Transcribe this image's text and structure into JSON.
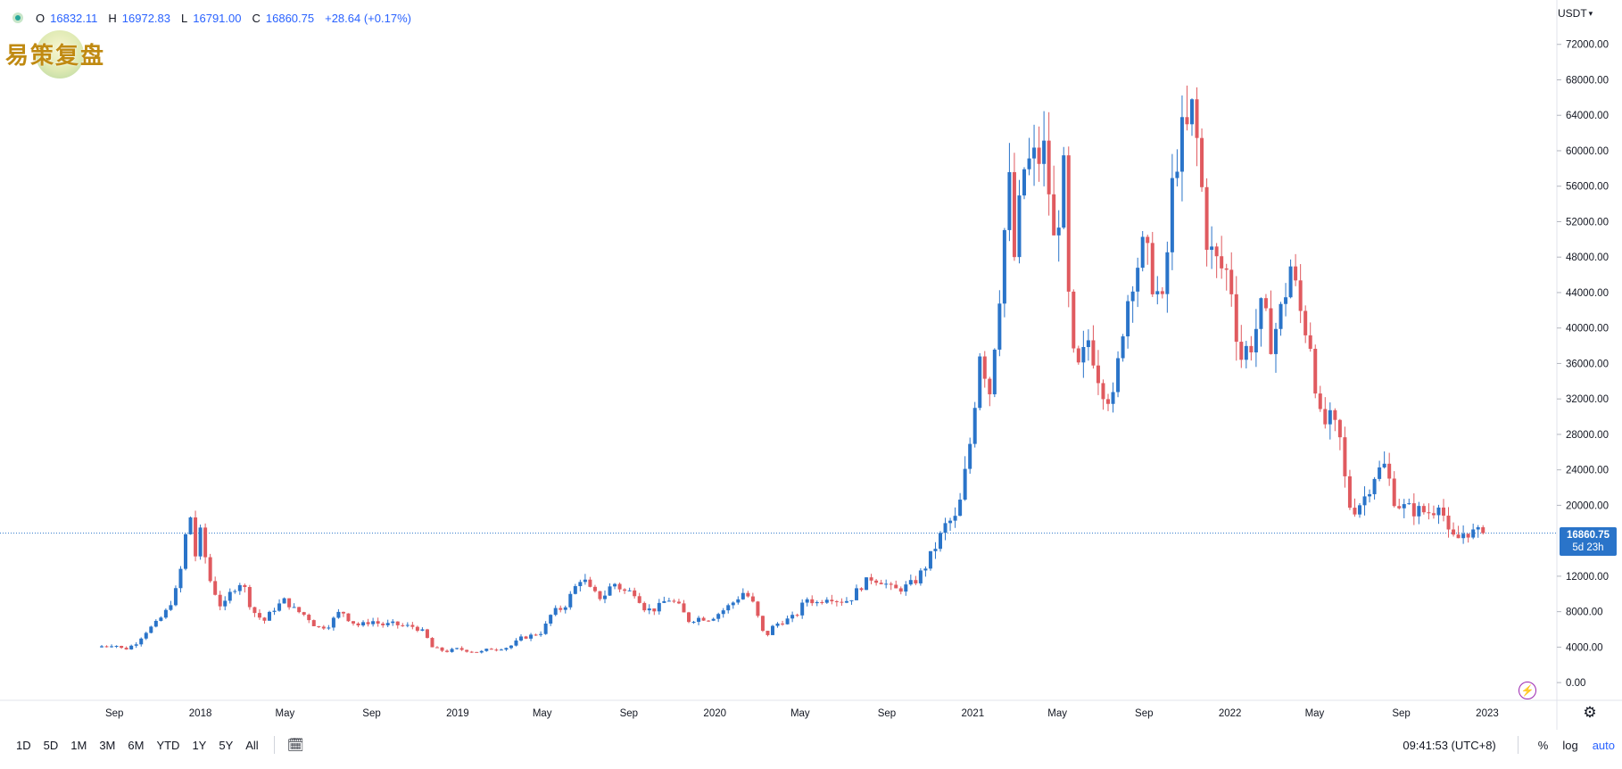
{
  "legend": {
    "open_label": "O",
    "open": "16832.11",
    "high_label": "H",
    "high": "16972.83",
    "low_label": "L",
    "low": "16791.00",
    "close_label": "C",
    "close": "16860.75",
    "change": "+28.64 (+0.17%)"
  },
  "watermark": {
    "text": "易策复盘"
  },
  "currency": {
    "label": "USDT",
    "icon": "chevron-down-icon"
  },
  "price_tag": {
    "price": "16860.75",
    "countdown": "5d 23h"
  },
  "toolbar": {
    "ranges": [
      "1D",
      "5D",
      "1M",
      "3M",
      "6M",
      "YTD",
      "1Y",
      "5Y",
      "All"
    ],
    "date_range_icon": "calendar-range-icon",
    "clock": "09:41:53 (UTC+8)",
    "percent_label": "%",
    "log_label": "log",
    "auto_label": "auto"
  },
  "icons": {
    "flash": "flash-icon",
    "settings": "gear-icon",
    "status": "status-dot"
  },
  "colors": {
    "up": "#2a74c9",
    "down": "#e05a5f",
    "price_line": "#2a74c9",
    "legend_text": "#2962ff",
    "axis_text": "#131722",
    "gridline": "none"
  },
  "chart_data": {
    "type": "candlestick",
    "symbol_currency": "USDT",
    "interval": "weekly",
    "grid": false,
    "ylim": [
      -2000,
      76000
    ],
    "y_ticks": [
      "72000.00",
      "68000.00",
      "64000.00",
      "60000.00",
      "56000.00",
      "52000.00",
      "48000.00",
      "44000.00",
      "40000.00",
      "36000.00",
      "32000.00",
      "28000.00",
      "24000.00",
      "20000.00",
      "12000.00",
      "8000.00",
      "4000.00",
      "0.00"
    ],
    "x_start": "2017-08-14",
    "x_end": "2023-02-27",
    "x_ticks": [
      {
        "label": "Sep",
        "date": "2017-09-01"
      },
      {
        "label": "2018",
        "date": "2018-01-01"
      },
      {
        "label": "May",
        "date": "2018-05-01"
      },
      {
        "label": "Sep",
        "date": "2018-09-01"
      },
      {
        "label": "2019",
        "date": "2019-01-01"
      },
      {
        "label": "May",
        "date": "2019-05-01"
      },
      {
        "label": "Sep",
        "date": "2019-09-01"
      },
      {
        "label": "2020",
        "date": "2020-01-01"
      },
      {
        "label": "May",
        "date": "2020-05-01"
      },
      {
        "label": "Sep",
        "date": "2020-09-01"
      },
      {
        "label": "2021",
        "date": "2021-01-01"
      },
      {
        "label": "May",
        "date": "2021-05-01"
      },
      {
        "label": "Sep",
        "date": "2021-09-01"
      },
      {
        "label": "2022",
        "date": "2022-01-01"
      },
      {
        "label": "May",
        "date": "2022-05-01"
      },
      {
        "label": "Sep",
        "date": "2022-09-01"
      },
      {
        "label": "2023",
        "date": "2023-01-01"
      }
    ],
    "last_price": 16860.75,
    "closes": [
      {
        "date": "2017-08-14",
        "close": 4100
      },
      {
        "date": "2017-09-01",
        "close": 4300
      },
      {
        "date": "2017-09-15",
        "close": 3700
      },
      {
        "date": "2017-10-01",
        "close": 4400
      },
      {
        "date": "2017-10-15",
        "close": 5700
      },
      {
        "date": "2017-11-01",
        "close": 6800
      },
      {
        "date": "2017-11-15",
        "close": 8200
      },
      {
        "date": "2017-12-01",
        "close": 11000
      },
      {
        "date": "2017-12-08",
        "close": 15000
      },
      {
        "date": "2017-12-17",
        "close": 19500
      },
      {
        "date": "2017-12-24",
        "close": 14000
      },
      {
        "date": "2018-01-01",
        "close": 16800
      },
      {
        "date": "2018-01-15",
        "close": 11500
      },
      {
        "date": "2018-02-01",
        "close": 8200
      },
      {
        "date": "2018-02-15",
        "close": 10500
      },
      {
        "date": "2018-03-01",
        "close": 11500
      },
      {
        "date": "2018-03-15",
        "close": 8200
      },
      {
        "date": "2018-04-01",
        "close": 6900
      },
      {
        "date": "2018-04-15",
        "close": 8300
      },
      {
        "date": "2018-05-01",
        "close": 9300
      },
      {
        "date": "2018-05-15",
        "close": 8200
      },
      {
        "date": "2018-06-01",
        "close": 7500
      },
      {
        "date": "2018-06-15",
        "close": 6200
      },
      {
        "date": "2018-07-01",
        "close": 6400
      },
      {
        "date": "2018-07-20",
        "close": 8200
      },
      {
        "date": "2018-08-01",
        "close": 7000
      },
      {
        "date": "2018-08-15",
        "close": 6400
      },
      {
        "date": "2018-09-01",
        "close": 7000
      },
      {
        "date": "2018-09-15",
        "close": 6500
      },
      {
        "date": "2018-10-01",
        "close": 6600
      },
      {
        "date": "2018-10-15",
        "close": 6400
      },
      {
        "date": "2018-11-01",
        "close": 6300
      },
      {
        "date": "2018-11-15",
        "close": 5600
      },
      {
        "date": "2018-11-25",
        "close": 4000
      },
      {
        "date": "2018-12-15",
        "close": 3500
      },
      {
        "date": "2019-01-01",
        "close": 3800
      },
      {
        "date": "2019-01-15",
        "close": 3600
      },
      {
        "date": "2019-02-01",
        "close": 3400
      },
      {
        "date": "2019-02-15",
        "close": 3800
      },
      {
        "date": "2019-03-01",
        "close": 3850
      },
      {
        "date": "2019-03-15",
        "close": 4000
      },
      {
        "date": "2019-04-01",
        "close": 5000
      },
      {
        "date": "2019-04-15",
        "close": 5300
      },
      {
        "date": "2019-05-01",
        "close": 5700
      },
      {
        "date": "2019-05-15",
        "close": 7900
      },
      {
        "date": "2019-06-01",
        "close": 8500
      },
      {
        "date": "2019-06-15",
        "close": 10500
      },
      {
        "date": "2019-06-26",
        "close": 12000
      },
      {
        "date": "2019-07-10",
        "close": 10200
      },
      {
        "date": "2019-07-25",
        "close": 9500
      },
      {
        "date": "2019-08-10",
        "close": 11300
      },
      {
        "date": "2019-08-25",
        "close": 10300
      },
      {
        "date": "2019-09-10",
        "close": 10200
      },
      {
        "date": "2019-09-25",
        "close": 8200
      },
      {
        "date": "2019-10-10",
        "close": 8300
      },
      {
        "date": "2019-10-26",
        "close": 9500
      },
      {
        "date": "2019-11-10",
        "close": 8700
      },
      {
        "date": "2019-11-25",
        "close": 7000
      },
      {
        "date": "2019-12-10",
        "close": 7300
      },
      {
        "date": "2019-12-25",
        "close": 7200
      },
      {
        "date": "2020-01-10",
        "close": 8000
      },
      {
        "date": "2020-01-25",
        "close": 8900
      },
      {
        "date": "2020-02-12",
        "close": 10300
      },
      {
        "date": "2020-02-25",
        "close": 8800
      },
      {
        "date": "2020-03-12",
        "close": 5000
      },
      {
        "date": "2020-03-25",
        "close": 6500
      },
      {
        "date": "2020-04-10",
        "close": 7000
      },
      {
        "date": "2020-04-25",
        "close": 7500
      },
      {
        "date": "2020-05-10",
        "close": 9500
      },
      {
        "date": "2020-05-25",
        "close": 9000
      },
      {
        "date": "2020-06-10",
        "close": 9800
      },
      {
        "date": "2020-06-25",
        "close": 9200
      },
      {
        "date": "2020-07-10",
        "close": 9300
      },
      {
        "date": "2020-07-25",
        "close": 10800
      },
      {
        "date": "2020-08-10",
        "close": 11800
      },
      {
        "date": "2020-08-25",
        "close": 11500
      },
      {
        "date": "2020-09-10",
        "close": 10400
      },
      {
        "date": "2020-09-25",
        "close": 10700
      },
      {
        "date": "2020-10-10",
        "close": 11300
      },
      {
        "date": "2020-10-25",
        "close": 13000
      },
      {
        "date": "2020-11-10",
        "close": 15500
      },
      {
        "date": "2020-11-25",
        "close": 18000
      },
      {
        "date": "2020-12-10",
        "close": 18500
      },
      {
        "date": "2020-12-20",
        "close": 23000
      },
      {
        "date": "2021-01-01",
        "close": 29000
      },
      {
        "date": "2021-01-10",
        "close": 38000
      },
      {
        "date": "2021-01-25",
        "close": 33000
      },
      {
        "date": "2021-02-10",
        "close": 46000
      },
      {
        "date": "2021-02-21",
        "close": 57000
      },
      {
        "date": "2021-03-01",
        "close": 48000
      },
      {
        "date": "2021-03-15",
        "close": 58000
      },
      {
        "date": "2021-04-01",
        "close": 59000
      },
      {
        "date": "2021-04-15",
        "close": 60000
      },
      {
        "date": "2021-04-25",
        "close": 49000
      },
      {
        "date": "2021-05-10",
        "close": 57000
      },
      {
        "date": "2021-05-20",
        "close": 37000
      },
      {
        "date": "2021-06-01",
        "close": 35000
      },
      {
        "date": "2021-06-15",
        "close": 39000
      },
      {
        "date": "2021-07-01",
        "close": 34000
      },
      {
        "date": "2021-07-20",
        "close": 31500
      },
      {
        "date": "2021-08-01",
        "close": 40000
      },
      {
        "date": "2021-08-15",
        "close": 46000
      },
      {
        "date": "2021-09-01",
        "close": 49000
      },
      {
        "date": "2021-09-15",
        "close": 45000
      },
      {
        "date": "2021-09-28",
        "close": 42000
      },
      {
        "date": "2021-10-10",
        "close": 55000
      },
      {
        "date": "2021-10-20",
        "close": 61000
      },
      {
        "date": "2021-11-01",
        "close": 62000
      },
      {
        "date": "2021-11-10",
        "close": 65000
      },
      {
        "date": "2021-11-20",
        "close": 57000
      },
      {
        "date": "2021-12-01",
        "close": 49000
      },
      {
        "date": "2021-12-15",
        "close": 47000
      },
      {
        "date": "2022-01-01",
        "close": 46000
      },
      {
        "date": "2022-01-15",
        "close": 36500
      },
      {
        "date": "2022-02-01",
        "close": 38500
      },
      {
        "date": "2022-02-15",
        "close": 42000
      },
      {
        "date": "2022-03-01",
        "close": 38500
      },
      {
        "date": "2022-03-15",
        "close": 42000
      },
      {
        "date": "2022-03-28",
        "close": 47000
      },
      {
        "date": "2022-04-10",
        "close": 42000
      },
      {
        "date": "2022-04-25",
        "close": 38500
      },
      {
        "date": "2022-05-10",
        "close": 29000
      },
      {
        "date": "2022-05-25",
        "close": 29500
      },
      {
        "date": "2022-06-10",
        "close": 26500
      },
      {
        "date": "2022-06-15",
        "close": 20500
      },
      {
        "date": "2022-06-25",
        "close": 19500
      },
      {
        "date": "2022-07-10",
        "close": 20800
      },
      {
        "date": "2022-07-25",
        "close": 23500
      },
      {
        "date": "2022-08-10",
        "close": 24500
      },
      {
        "date": "2022-08-20",
        "close": 21000
      },
      {
        "date": "2022-09-01",
        "close": 19800
      },
      {
        "date": "2022-09-15",
        "close": 19500
      },
      {
        "date": "2022-10-01",
        "close": 19300
      },
      {
        "date": "2022-10-15",
        "close": 19200
      },
      {
        "date": "2022-10-25",
        "close": 20800
      },
      {
        "date": "2022-11-08",
        "close": 16300
      },
      {
        "date": "2022-11-20",
        "close": 16200
      },
      {
        "date": "2022-12-01",
        "close": 17100
      },
      {
        "date": "2022-12-15",
        "close": 16800
      },
      {
        "date": "2022-12-26",
        "close": 16860.75
      }
    ]
  }
}
